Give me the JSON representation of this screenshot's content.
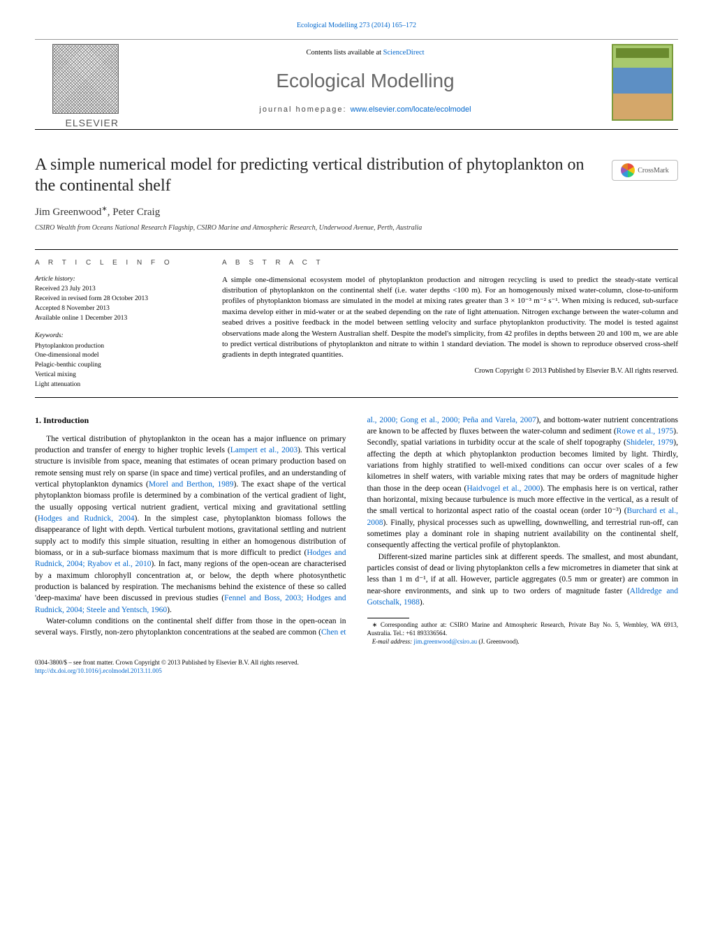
{
  "top_link": {
    "text": "Ecological Modelling 273 (2014) 165–172",
    "href_color": "#0066cc"
  },
  "masthead": {
    "contents_prefix": "Contents lists available at ",
    "contents_link": "ScienceDirect",
    "journal_name": "Ecological Modelling",
    "homepage_prefix": "journal homepage: ",
    "homepage_url": "www.elsevier.com/locate/ecolmodel",
    "publisher_word": "ELSEVIER"
  },
  "article": {
    "title": "A simple numerical model for predicting vertical distribution of phytoplankton on the continental shelf",
    "authors": "Jim Greenwood",
    "author2": ", Peter Craig",
    "corr_marker": "∗",
    "affiliation": "CSIRO Wealth from Oceans National Research Flagship, CSIRO Marine and Atmospheric Research, Underwood Avenue, Perth, Australia",
    "crossmark_label": "CrossMark"
  },
  "info": {
    "heading": "a r t i c l e   i n f o",
    "history_label": "Article history:",
    "received": "Received 23 July 2013",
    "revised": "Received in revised form 28 October 2013",
    "accepted": "Accepted 8 November 2013",
    "online": "Available online 1 December 2013",
    "keywords_label": "Keywords:",
    "keywords": [
      "Phytoplankton production",
      "One-dimensional model",
      "Pelagic-benthic coupling",
      "Vertical mixing",
      "Light attenuation"
    ]
  },
  "abstract": {
    "heading": "a b s t r a c t",
    "text": "A simple one-dimensional ecosystem model of phytoplankton production and nitrogen recycling is used to predict the steady-state vertical distribution of phytoplankton on the continental shelf (i.e. water depths <100 m). For an homogenously mixed water-column, close-to-uniform profiles of phytoplankton biomass are simulated in the model at mixing rates greater than 3 × 10⁻³ m⁻² s⁻¹. When mixing is reduced, sub-surface maxima develop either in mid-water or at the seabed depending on the rate of light attenuation. Nitrogen exchange between the water-column and seabed drives a positive feedback in the model between settling velocity and surface phytoplankton productivity. The model is tested against observations made along the Western Australian shelf. Despite the model's simplicity, from 42 profiles in depths between 20 and 100 m, we are able to predict vertical distributions of phytoplankton and nitrate to within 1 standard deviation. The model is shown to reproduce observed cross-shelf gradients in depth integrated quantities.",
    "copyright": "Crown Copyright © 2013 Published by Elsevier B.V. All rights reserved."
  },
  "body": {
    "section1_heading": "1.  Introduction",
    "para1a": "The vertical distribution of phytoplankton in the ocean has a major influence on primary production and transfer of energy to higher trophic levels (",
    "cite1": "Lampert et al., 2003",
    "para1b": "). This vertical structure is invisible from space, meaning that estimates of ocean primary production based on remote sensing must rely on sparse (in space and time) vertical profiles, and an understanding of vertical phytoplankton dynamics (",
    "cite2": "Morel and Berthon, 1989",
    "para1c": "). The exact shape of the vertical phytoplankton biomass profile is determined by a combination of the vertical gradient of light, the usually opposing vertical nutrient gradient, vertical mixing and gravitational settling (",
    "cite3": "Hodges and Rudnick, 2004",
    "para1d": "). In the simplest case, phytoplankton biomass follows the disappearance of light with depth. Vertical turbulent motions, gravitational settling and nutrient supply act to modify this simple situation, resulting in either an homogenous distribution of biomass, or in a sub-surface biomass maximum that is more difficult to predict (",
    "cite4": "Hodges and Rudnick, 2004; Ryabov et al., 2010",
    "para1e": "). In fact, many regions of the open-ocean are characterised by a maximum chlorophyll concentration at, or below, the depth where photosynthetic production is balanced by respiration. The mechanisms behind the existence of these so called 'deep-maxima' have been discussed in previous studies (",
    "cite5": "Fennel and Boss, 2003; Hodges and Rudnick, 2004; Steele and Yentsch, 1960",
    "para1f": ").",
    "para2a": "Water-column conditions on the continental shelf differ from those in the open-ocean in several ways. Firstly, non-zero phytoplankton concentrations at the seabed are common (",
    "cite6": "Chen et al., 2000; Gong et al., 2000; Peña and Varela, 2007",
    "para2b": "), and bottom-water nutrient concentrations are known to be affected by fluxes between the water-column and sediment (",
    "cite7": "Rowe et al., 1975",
    "para2c": "). Secondly, spatial variations in turbidity occur at the scale of shelf topography (",
    "cite8": "Shideler, 1979",
    "para2d": "), affecting the depth at which phytoplankton production becomes limited by light. Thirdly, variations from highly stratified to well-mixed conditions can occur over scales of a few kilometres in shelf waters, with variable mixing rates that may be orders of magnitude higher than those in the deep ocean (",
    "cite9": "Haidvogel et al., 2000",
    "para2e": "). The emphasis here is on vertical, rather than horizontal, mixing because turbulence is much more effective in the vertical, as a result of the small vertical to horizontal aspect ratio of the coastal ocean (order 10⁻³) (",
    "cite10": "Burchard et al., 2008",
    "para2f": "). Finally, physical processes such as upwelling, downwelling, and terrestrial run-off, can sometimes play a dominant role in shaping nutrient availability on the continental shelf, consequently affecting the vertical profile of phytoplankton.",
    "para3a": "Different-sized marine particles sink at different speeds. The smallest, and most abundant, particles consist of dead or living phytoplankton cells a few micrometres in diameter that sink at less than 1 m d⁻¹, if at all. However, particle aggregates (0.5 mm or greater) are common in near-shore environments, and sink up to two orders of magnitude faster (",
    "cite11": "Alldredge and Gotschalk, 1988",
    "para3b": ")."
  },
  "footnotes": {
    "corr": "∗ Corresponding author at: CSIRO Marine and Atmospheric Research, Private Bay No. 5, Wembley, WA 6913, Australia. Tel.: +61 893336564.",
    "email_label": "E-mail address: ",
    "email": "jim.greenwood@csiro.au",
    "email_suffix": " (J. Greenwood)."
  },
  "bottom": {
    "issn_line": "0304-3800/$ – see front matter. Crown Copyright © 2013 Published by Elsevier B.V. All rights reserved.",
    "doi": "http://dx.doi.org/10.1016/j.ecolmodel.2013.11.005"
  },
  "colors": {
    "link": "#0066cc",
    "text": "#000000",
    "heading_gray": "#666666"
  }
}
